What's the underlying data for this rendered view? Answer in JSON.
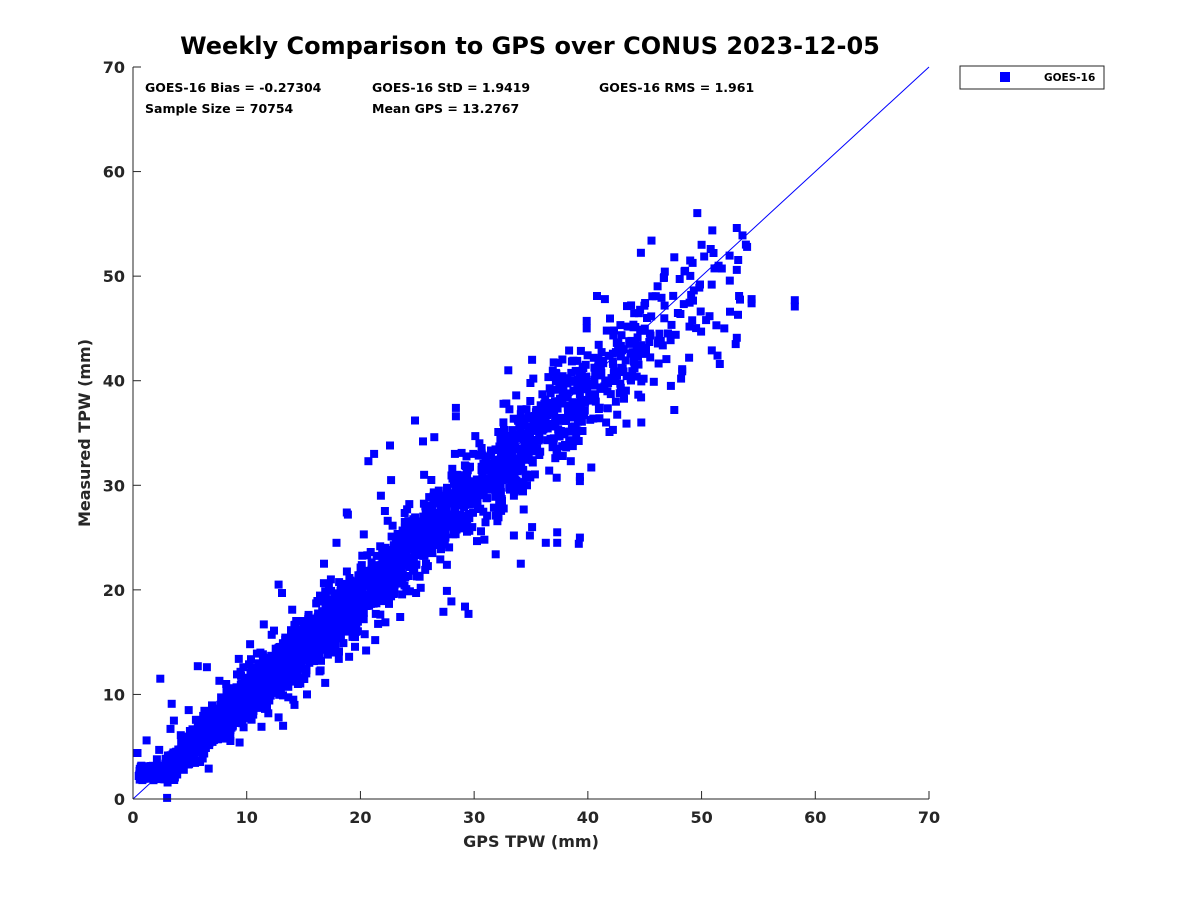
{
  "chart_data": {
    "type": "scatter",
    "title": "Weekly Comparison to GPS over CONUS 2023-12-05",
    "xlabel": "GPS TPW (mm)",
    "ylabel": "Measured TPW (mm)",
    "xlim": [
      0,
      70
    ],
    "ylim": [
      0,
      70
    ],
    "xticks": [
      "0",
      "10",
      "20",
      "30",
      "40",
      "50",
      "60",
      "70"
    ],
    "yticks": [
      "0",
      "10",
      "20",
      "30",
      "40",
      "50",
      "60",
      "70"
    ],
    "legend": {
      "position": "outside-top-right",
      "label": "GOES-16"
    },
    "reference_line": {
      "label": "1:1 line",
      "from": [
        0,
        0
      ],
      "to": [
        70,
        70
      ]
    },
    "series": [
      {
        "name": "GOES-16",
        "color": "#0000ff",
        "marker": "square",
        "bias": -0.27304,
        "std": 1.9419,
        "rms": 1.961,
        "sample_size": 70754,
        "mean_gps": 13.2767,
        "notable_points": [
          [
            58.2,
            47.7
          ],
          [
            58.2,
            47.1
          ],
          [
            53.1,
            54.6
          ],
          [
            53.6,
            53.9
          ],
          [
            54.0,
            52.8
          ],
          [
            45.6,
            53.4
          ],
          [
            50.0,
            53.0
          ],
          [
            50.8,
            52.6
          ],
          [
            49.0,
            51.5
          ],
          [
            51.5,
            51.0
          ],
          [
            47.6,
            51.8
          ],
          [
            53.1,
            50.6
          ],
          [
            46.7,
            49.9
          ],
          [
            49.8,
            48.9
          ],
          [
            54.4,
            47.8
          ],
          [
            53.3,
            48.1
          ],
          [
            54.4,
            47.4
          ],
          [
            52.5,
            46.6
          ],
          [
            53.2,
            46.3
          ],
          [
            51.3,
            45.3
          ],
          [
            50.4,
            45.8
          ],
          [
            52.0,
            45.0
          ],
          [
            53.1,
            44.1
          ],
          [
            53.0,
            43.5
          ],
          [
            50.9,
            42.9
          ],
          [
            51.4,
            42.4
          ],
          [
            51.6,
            41.6
          ],
          [
            48.9,
            42.2
          ],
          [
            48.3,
            41.1
          ],
          [
            48.3,
            40.9
          ],
          [
            48.2,
            40.2
          ],
          [
            47.3,
            39.5
          ],
          [
            47.6,
            37.2
          ],
          [
            40.8,
            48.1
          ],
          [
            41.5,
            47.8
          ],
          [
            39.9,
            45.0
          ],
          [
            35.1,
            42.0
          ],
          [
            33.0,
            41.0
          ],
          [
            28.4,
            37.4
          ],
          [
            28.4,
            36.6
          ],
          [
            24.8,
            36.2
          ],
          [
            26.5,
            34.6
          ],
          [
            25.5,
            34.2
          ],
          [
            22.6,
            33.8
          ],
          [
            21.2,
            33.0
          ],
          [
            20.7,
            32.3
          ],
          [
            38.7,
            34.2
          ],
          [
            37.8,
            32.8
          ],
          [
            38.5,
            32.3
          ],
          [
            40.3,
            31.7
          ],
          [
            36.6,
            31.4
          ],
          [
            39.3,
            30.8
          ],
          [
            39.3,
            30.4
          ],
          [
            35.1,
            26.0
          ],
          [
            37.3,
            25.5
          ],
          [
            37.3,
            24.5
          ],
          [
            36.3,
            24.5
          ],
          [
            39.3,
            25.0
          ],
          [
            39.2,
            24.4
          ],
          [
            34.9,
            25.2
          ],
          [
            32.2,
            28.4
          ],
          [
            31.9,
            27.1
          ],
          [
            33.5,
            29.0
          ],
          [
            18.9,
            27.2
          ],
          [
            18.8,
            27.4
          ],
          [
            17.9,
            24.5
          ],
          [
            20.3,
            25.3
          ],
          [
            24.9,
            22.4
          ],
          [
            23.7,
            20.6
          ],
          [
            27.6,
            19.9
          ],
          [
            28.0,
            18.9
          ],
          [
            29.2,
            18.4
          ],
          [
            29.5,
            17.7
          ],
          [
            27.3,
            17.9
          ],
          [
            22.2,
            16.9
          ],
          [
            21.3,
            15.2
          ],
          [
            13.1,
            19.7
          ],
          [
            12.8,
            20.5
          ],
          [
            11.5,
            16.7
          ],
          [
            12.4,
            16.1
          ],
          [
            19.1,
            19.1
          ],
          [
            18.1,
            14.1
          ],
          [
            19.0,
            13.6
          ],
          [
            18.1,
            13.4
          ],
          [
            15.6,
            16.6
          ],
          [
            17.8,
            14.8
          ],
          [
            17.2,
            17.1
          ],
          [
            19.3,
            15.5
          ],
          [
            16.5,
            12.3
          ],
          [
            13.2,
            12.7
          ],
          [
            10.3,
            14.8
          ],
          [
            9.5,
            11.8
          ],
          [
            9.3,
            13.4
          ],
          [
            8.2,
            11.0
          ],
          [
            7.6,
            11.3
          ],
          [
            10.9,
            13.9
          ],
          [
            3.4,
            9.1
          ],
          [
            2.4,
            11.5
          ],
          [
            5.0,
            6.5
          ],
          [
            5.7,
            12.7
          ],
          [
            4.9,
            8.5
          ],
          [
            6.5,
            12.6
          ],
          [
            4.3,
            5.0
          ],
          [
            3.3,
            6.7
          ],
          [
            3.6,
            7.5
          ],
          [
            2.3,
            4.7
          ],
          [
            1.2,
            5.6
          ],
          [
            0.4,
            4.4
          ],
          [
            0.8,
            3.0
          ],
          [
            1.7,
            2.8
          ],
          [
            2.1,
            3.8
          ],
          [
            2.6,
            2.4
          ],
          [
            3.1,
            2.2
          ],
          [
            1.8,
            1.8
          ],
          [
            2.2,
            2.6
          ],
          [
            1.4,
            2.0
          ],
          [
            0.9,
            2.4
          ],
          [
            0.5,
            2.2
          ],
          [
            2.0,
            1.9
          ],
          [
            4.2,
            6.1
          ],
          [
            13.2,
            7.0
          ],
          [
            14.2,
            9.0
          ],
          [
            11.9,
            8.2
          ],
          [
            12.8,
            7.8
          ],
          [
            14.1,
            9.5
          ],
          [
            15.3,
            10.0
          ],
          [
            16.4,
            12.2
          ],
          [
            14.5,
            11.0
          ],
          [
            11.3,
            6.9
          ],
          [
            16.9,
            11.1
          ],
          [
            20.5,
            14.2
          ],
          [
            23.5,
            17.4
          ],
          [
            20.3,
            17.8
          ],
          [
            25.3,
            20.2
          ],
          [
            19.6,
            20.0
          ],
          [
            24.9,
            19.7
          ],
          [
            31.9,
            23.4
          ],
          [
            33.5,
            25.2
          ],
          [
            34.1,
            22.5
          ],
          [
            30.6,
            25.6
          ],
          [
            27.6,
            22.4
          ],
          [
            30.9,
            24.8
          ],
          [
            44.7,
            36.0
          ],
          [
            43.4,
            35.9
          ],
          [
            42.2,
            35.3
          ],
          [
            41.6,
            36.0
          ],
          [
            41.9,
            35.1
          ],
          [
            44.1,
            41.2
          ],
          [
            42.8,
            38.8
          ],
          [
            45.8,
            39.9
          ],
          [
            43.0,
            42.9
          ],
          [
            44.7,
            43.4
          ],
          [
            45.4,
            43.7
          ],
          [
            46.3,
            44.5
          ],
          [
            42.3,
            44.8
          ],
          [
            43.8,
            47.2
          ],
          [
            45.2,
            46.0
          ],
          [
            40.7,
            38.0
          ],
          [
            39.2,
            36.6
          ],
          [
            38.3,
            36.8
          ],
          [
            36.0,
            38.7
          ],
          [
            37.4,
            41.7
          ],
          [
            35.2,
            40.2
          ],
          [
            33.7,
            38.6
          ],
          [
            34.1,
            36.8
          ],
          [
            30.1,
            34.7
          ],
          [
            28.9,
            33.1
          ],
          [
            28.5,
            31.0
          ],
          [
            24.1,
            27.7
          ],
          [
            25.6,
            31.0
          ],
          [
            29.1,
            26.4
          ],
          [
            25.4,
            25.0
          ],
          [
            16.4,
            18.9
          ],
          [
            14.0,
            18.1
          ],
          [
            17.4,
            21.0
          ],
          [
            22.4,
            26.6
          ],
          [
            23.9,
            26.5
          ],
          [
            22.7,
            30.5
          ],
          [
            24.3,
            28.2
          ],
          [
            21.8,
            29.0
          ],
          [
            16.8,
            22.5
          ],
          [
            20.6,
            23.3
          ],
          [
            8.8,
            10.6
          ],
          [
            7.5,
            8.2
          ],
          [
            6.2,
            6.7
          ],
          [
            9.7,
            12.6
          ],
          [
            10.3,
            10.0
          ],
          [
            13.7,
            14.8
          ],
          [
            12.0,
            11.1
          ],
          [
            11.2,
            14.0
          ]
        ]
      }
    ]
  },
  "stats": {
    "bias_text": "GOES-16 Bias = -0.27304",
    "std_text": "GOES-16 StD = 1.9419",
    "rms_text": "GOES-16 RMS = 1.961",
    "sample_text": "Sample Size = 70754",
    "mean_text": "Mean GPS = 13.2767"
  }
}
